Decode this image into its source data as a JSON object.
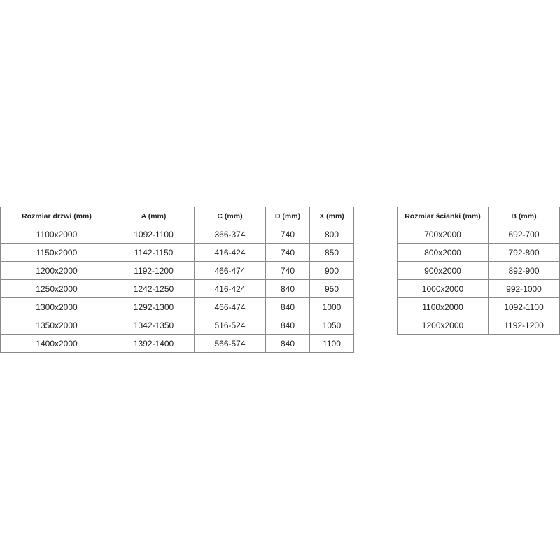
{
  "door_table": {
    "headers": [
      "Rozmiar drzwi (mm)",
      "A (mm)",
      "C (mm)",
      "D (mm)",
      "X (mm)"
    ],
    "rows": [
      [
        "1100x2000",
        "1092-1100",
        "366-374",
        "740",
        "800"
      ],
      [
        "1150x2000",
        "1142-1150",
        "416-424",
        "740",
        "850"
      ],
      [
        "1200x2000",
        "1192-1200",
        "466-474",
        "740",
        "900"
      ],
      [
        "1250x2000",
        "1242-1250",
        "416-424",
        "840",
        "950"
      ],
      [
        "1300x2000",
        "1292-1300",
        "466-474",
        "840",
        "1000"
      ],
      [
        "1350x2000",
        "1342-1350",
        "516-524",
        "840",
        "1050"
      ],
      [
        "1400x2000",
        "1392-1400",
        "566-574",
        "840",
        "1100"
      ]
    ]
  },
  "wall_table": {
    "headers": [
      "Rozmiar ścianki (mm)",
      "B (mm)"
    ],
    "rows": [
      [
        "700x2000",
        "692-700"
      ],
      [
        "800x2000",
        "792-800"
      ],
      [
        "900x2000",
        "892-900"
      ],
      [
        "1000x2000",
        "992-1000"
      ],
      [
        "1100x2000",
        "1092-1100"
      ],
      [
        "1200x2000",
        "1192-1200"
      ]
    ]
  }
}
